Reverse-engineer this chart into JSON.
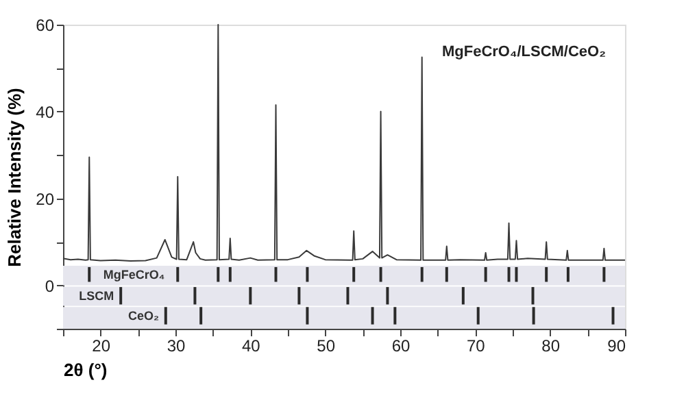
{
  "chart_data": {
    "type": "line",
    "xlabel": "2θ (°)",
    "ylabel": "Relative Intensity (%)",
    "annotations": [
      "MgFeCrO₄/LSCM/CeO₂"
    ],
    "xlim": [
      15,
      90
    ],
    "ylim": [
      -10,
      60
    ],
    "xticks": [
      {
        "value": 15,
        "label": null
      },
      20,
      {
        "value": 25,
        "label": null
      },
      30,
      {
        "value": 35,
        "label": null
      },
      40,
      {
        "value": 45,
        "label": null
      },
      50,
      {
        "value": 55,
        "label": null
      },
      60,
      {
        "value": 65,
        "label": null
      },
      70,
      {
        "value": 75,
        "label": null
      },
      80,
      {
        "value": 85,
        "label": null
      },
      90
    ],
    "yticks": [
      {
        "value": -10,
        "label": null
      },
      0,
      {
        "value": 10,
        "label": null
      },
      20,
      {
        "value": 30,
        "label": null
      },
      40,
      {
        "value": 50,
        "label": null
      },
      60
    ],
    "grid": false,
    "bands": [
      {
        "axis": "y",
        "from": 0,
        "to": 4.5,
        "color": "#e6e6ee"
      },
      {
        "axis": "y",
        "from": -4.7,
        "to": -0.3,
        "color": "#e6e6ee"
      },
      {
        "axis": "y",
        "from": -10,
        "to": -5,
        "color": "#e6e6ee"
      }
    ],
    "series": [
      {
        "color": "#3a3a3a",
        "x": [
          15,
          16,
          17,
          18,
          18.35,
          18.5,
          18.65,
          20,
          22,
          24,
          26,
          27.5,
          28.6,
          29.5,
          30.15,
          30.3,
          30.45,
          31.5,
          32.4,
          32.7,
          33.3,
          34,
          35.55,
          35.7,
          35.85,
          37.15,
          37.3,
          37.45,
          38.5,
          40,
          41,
          43.25,
          43.4,
          43.55,
          45,
          46.5,
          47.5,
          48.5,
          50,
          53.65,
          53.8,
          53.95,
          55,
          56.3,
          57.25,
          57.4,
          57.55,
          58.3,
          59.5,
          62.75,
          62.9,
          63.05,
          66.05,
          66.2,
          66.35,
          68,
          71.25,
          71.4,
          71.55,
          73,
          74.35,
          74.5,
          74.65,
          75.35,
          75.5,
          75.65,
          77,
          79.35,
          79.5,
          79.65,
          82.15,
          82.3,
          82.45,
          85,
          87.05,
          87.2,
          87.35,
          90
        ],
        "values": [
          6.2,
          5.9,
          6.0,
          5.8,
          5.9,
          29.5,
          5.9,
          5.7,
          5.8,
          5.6,
          5.7,
          6.3,
          10.5,
          6.5,
          6.0,
          25,
          6.0,
          5.9,
          10,
          7.5,
          6.1,
          5.8,
          5.9,
          60,
          5.9,
          6.0,
          10.8,
          6.0,
          5.8,
          6.3,
          5.8,
          5.9,
          41.5,
          5.9,
          5.9,
          6.5,
          8.0,
          6.8,
          5.9,
          5.8,
          12.5,
          5.9,
          6.1,
          7.8,
          6.3,
          40,
          6.3,
          7.0,
          5.9,
          5.8,
          52.5,
          5.8,
          5.8,
          9.0,
          5.8,
          5.9,
          5.8,
          7.5,
          5.8,
          6.0,
          6.0,
          14.3,
          6.0,
          6.0,
          10.3,
          6.0,
          6.2,
          6.0,
          10.0,
          6.0,
          5.8,
          8.0,
          5.8,
          5.8,
          5.8,
          8.5,
          5.8,
          5.8
        ]
      },
      {
        "type": "bar",
        "name": "MgFeCrO₄",
        "color": "#2a2a2a",
        "x": [
          18.5,
          30.3,
          35.7,
          37.3,
          43.4,
          47.6,
          53.8,
          57.4,
          62.9,
          66.2,
          71.4,
          74.5,
          75.5,
          79.5,
          82.4,
          87.2
        ],
        "base": [
          0.8,
          0.8,
          0.8,
          0.8,
          0.8,
          0.8,
          0.8,
          0.8,
          0.8,
          0.8,
          0.8,
          0.8,
          0.8,
          0.8,
          0.8,
          0.8
        ],
        "values": [
          3.4,
          3.4,
          3.4,
          3.4,
          3.4,
          3.4,
          3.4,
          3.4,
          3.4,
          3.4,
          3.4,
          3.4,
          3.4,
          3.4,
          3.4,
          3.4
        ]
      },
      {
        "type": "bar",
        "name": "LSCM",
        "color": "#2a2a2a",
        "x": [
          22.7,
          32.6,
          40.0,
          46.5,
          53.0,
          58.3,
          68.4,
          77.7
        ],
        "base": [
          -4.4,
          -4.4,
          -4.4,
          -4.4,
          -4.4,
          -4.4,
          -4.4,
          -4.4
        ],
        "values": [
          4,
          4,
          4,
          4,
          4,
          4,
          4,
          4
        ]
      },
      {
        "type": "bar",
        "name": "CeO₂",
        "color": "#2a2a2a",
        "x": [
          28.7,
          33.4,
          47.6,
          56.3,
          59.3,
          70.4,
          77.8,
          88.4
        ],
        "base": [
          -9,
          -9,
          -9,
          -9,
          -9,
          -9,
          -9,
          -9
        ],
        "values": [
          4,
          4,
          4,
          4,
          4,
          4,
          4,
          4
        ]
      }
    ]
  }
}
